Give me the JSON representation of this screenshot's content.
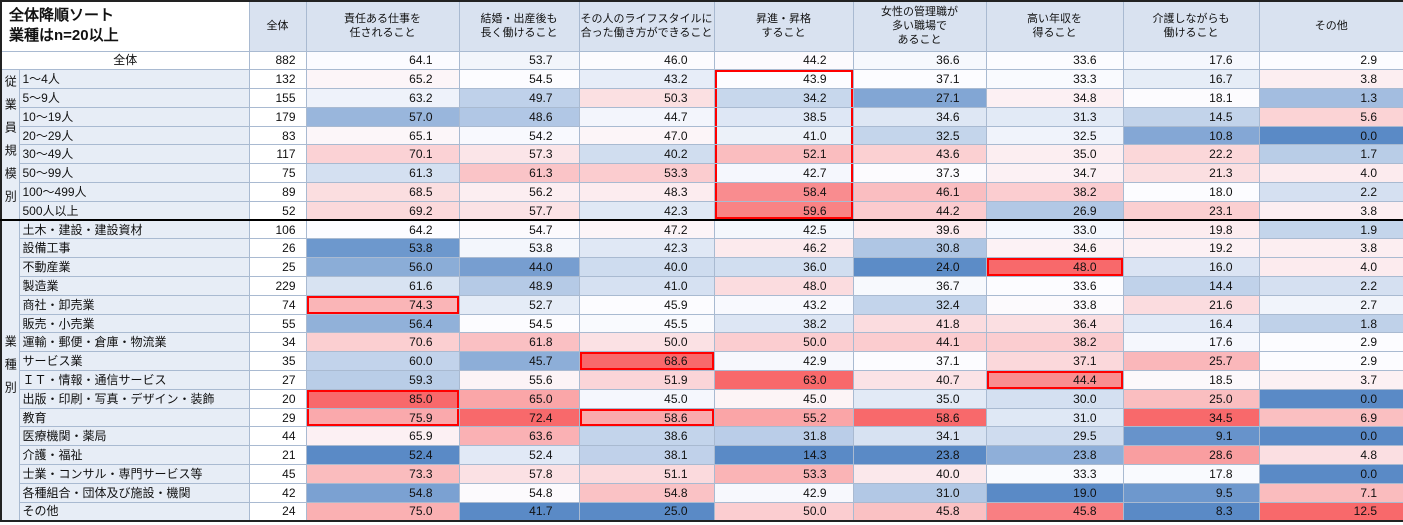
{
  "chart_data": {
    "type": "heatmap",
    "title": [
      "全体降順ソート",
      "業種はn=20以上"
    ],
    "n_column_label": "全体",
    "columns": [
      [
        "責任ある仕事を",
        "任されること"
      ],
      [
        "結婚・出産後も",
        "長く働けること"
      ],
      [
        "その人のライフスタイルに",
        "合った働き方ができること"
      ],
      [
        "昇進・昇格",
        "すること"
      ],
      [
        "女性の管理職が",
        "多い職場で",
        "あること"
      ],
      [
        "高い年収を",
        "得ること"
      ],
      [
        "介護しながらも",
        "働けること"
      ],
      [
        "その他"
      ]
    ],
    "groups": [
      {
        "label": "従業員規模別",
        "start": 1,
        "end": 8
      },
      {
        "label": "業種別",
        "start": 9,
        "end": 24
      }
    ],
    "rows": [
      {
        "label": "全体",
        "n": 882,
        "values": [
          64.1,
          53.7,
          46.0,
          44.2,
          36.6,
          33.6,
          17.6,
          2.9
        ]
      },
      {
        "label": "1〜4人",
        "n": 132,
        "values": [
          65.2,
          54.5,
          43.2,
          43.9,
          37.1,
          33.3,
          16.7,
          3.8
        ]
      },
      {
        "label": "5〜9人",
        "n": 155,
        "values": [
          63.2,
          49.7,
          50.3,
          34.2,
          27.1,
          34.8,
          18.1,
          1.3
        ]
      },
      {
        "label": "10〜19人",
        "n": 179,
        "values": [
          57.0,
          48.6,
          44.7,
          38.5,
          34.6,
          31.3,
          14.5,
          5.6
        ]
      },
      {
        "label": "20〜29人",
        "n": 83,
        "values": [
          65.1,
          54.2,
          47.0,
          41.0,
          32.5,
          32.5,
          10.8,
          0.0
        ]
      },
      {
        "label": "30〜49人",
        "n": 117,
        "values": [
          70.1,
          57.3,
          40.2,
          52.1,
          43.6,
          35.0,
          22.2,
          1.7
        ]
      },
      {
        "label": "50〜99人",
        "n": 75,
        "values": [
          61.3,
          61.3,
          53.3,
          42.7,
          37.3,
          34.7,
          21.3,
          4.0
        ]
      },
      {
        "label": "100〜499人",
        "n": 89,
        "values": [
          68.5,
          56.2,
          48.3,
          58.4,
          46.1,
          38.2,
          18.0,
          2.2
        ]
      },
      {
        "label": "500人以上",
        "n": 52,
        "values": [
          69.2,
          57.7,
          42.3,
          59.6,
          44.2,
          26.9,
          23.1,
          3.8
        ]
      },
      {
        "label": "土木・建設・建設資材",
        "n": 106,
        "values": [
          64.2,
          54.7,
          47.2,
          42.5,
          39.6,
          33.0,
          19.8,
          1.9
        ]
      },
      {
        "label": "設備工事",
        "n": 26,
        "values": [
          53.8,
          53.8,
          42.3,
          46.2,
          30.8,
          34.6,
          19.2,
          3.8
        ]
      },
      {
        "label": "不動産業",
        "n": 25,
        "values": [
          56.0,
          44.0,
          40.0,
          36.0,
          24.0,
          48.0,
          16.0,
          4.0
        ]
      },
      {
        "label": "製造業",
        "n": 229,
        "values": [
          61.6,
          48.9,
          41.0,
          48.0,
          36.7,
          33.6,
          14.4,
          2.2
        ]
      },
      {
        "label": "商社・卸売業",
        "n": 74,
        "values": [
          74.3,
          52.7,
          45.9,
          43.2,
          32.4,
          33.8,
          21.6,
          2.7
        ]
      },
      {
        "label": "販売・小売業",
        "n": 55,
        "values": [
          56.4,
          54.5,
          45.5,
          38.2,
          41.8,
          36.4,
          16.4,
          1.8
        ]
      },
      {
        "label": "運輸・郵便・倉庫・物流業",
        "n": 34,
        "values": [
          70.6,
          61.8,
          50.0,
          50.0,
          44.1,
          38.2,
          17.6,
          2.9
        ]
      },
      {
        "label": "サービス業",
        "n": 35,
        "values": [
          60.0,
          45.7,
          68.6,
          42.9,
          37.1,
          37.1,
          25.7,
          2.9
        ]
      },
      {
        "label": "ＩＴ・情報・通信サービス",
        "n": 27,
        "values": [
          59.3,
          55.6,
          51.9,
          63.0,
          40.7,
          44.4,
          18.5,
          3.7
        ]
      },
      {
        "label": "出版・印刷・写真・デザイン・装飾",
        "n": 20,
        "values": [
          85.0,
          65.0,
          45.0,
          45.0,
          35.0,
          30.0,
          25.0,
          0.0
        ]
      },
      {
        "label": "教育",
        "n": 29,
        "values": [
          75.9,
          72.4,
          58.6,
          55.2,
          58.6,
          31.0,
          34.5,
          6.9
        ]
      },
      {
        "label": "医療機関・薬局",
        "n": 44,
        "values": [
          65.9,
          63.6,
          38.6,
          31.8,
          34.1,
          29.5,
          9.1,
          0.0
        ]
      },
      {
        "label": "介護・福祉",
        "n": 21,
        "values": [
          52.4,
          52.4,
          38.1,
          14.3,
          23.8,
          23.8,
          28.6,
          4.8
        ]
      },
      {
        "label": "士業・コンサル・専門サービス等",
        "n": 45,
        "values": [
          73.3,
          57.8,
          51.1,
          53.3,
          40.0,
          33.3,
          17.8,
          0.0
        ]
      },
      {
        "label": "各種組合・団体及び施設・機関",
        "n": 42,
        "values": [
          54.8,
          54.8,
          54.8,
          42.9,
          31.0,
          19.0,
          9.5,
          7.1
        ]
      },
      {
        "label": "その他",
        "n": 24,
        "values": [
          75.0,
          41.7,
          25.0,
          50.0,
          45.8,
          45.8,
          8.3,
          12.5
        ]
      }
    ],
    "colorscale": {
      "low": "#5A8AC6",
      "mid": "#FCFCFF",
      "high": "#F8696B",
      "per": "column",
      "midpoint": "percentile-50"
    },
    "highlight_color": "#FF0000",
    "highlights": [
      {
        "col": 3,
        "row_start": 1,
        "row_end": 8
      },
      {
        "col": 5,
        "row_start": 11,
        "row_end": 11
      },
      {
        "col": 0,
        "row_start": 13,
        "row_end": 13
      },
      {
        "col": 2,
        "row_start": 16,
        "row_end": 16
      },
      {
        "col": 5,
        "row_start": 17,
        "row_end": 17
      },
      {
        "col": 0,
        "row_start": 18,
        "row_end": 19
      },
      {
        "col": 2,
        "row_start": 19,
        "row_end": 19
      }
    ],
    "layout": {
      "grid": true,
      "legend": false
    }
  }
}
